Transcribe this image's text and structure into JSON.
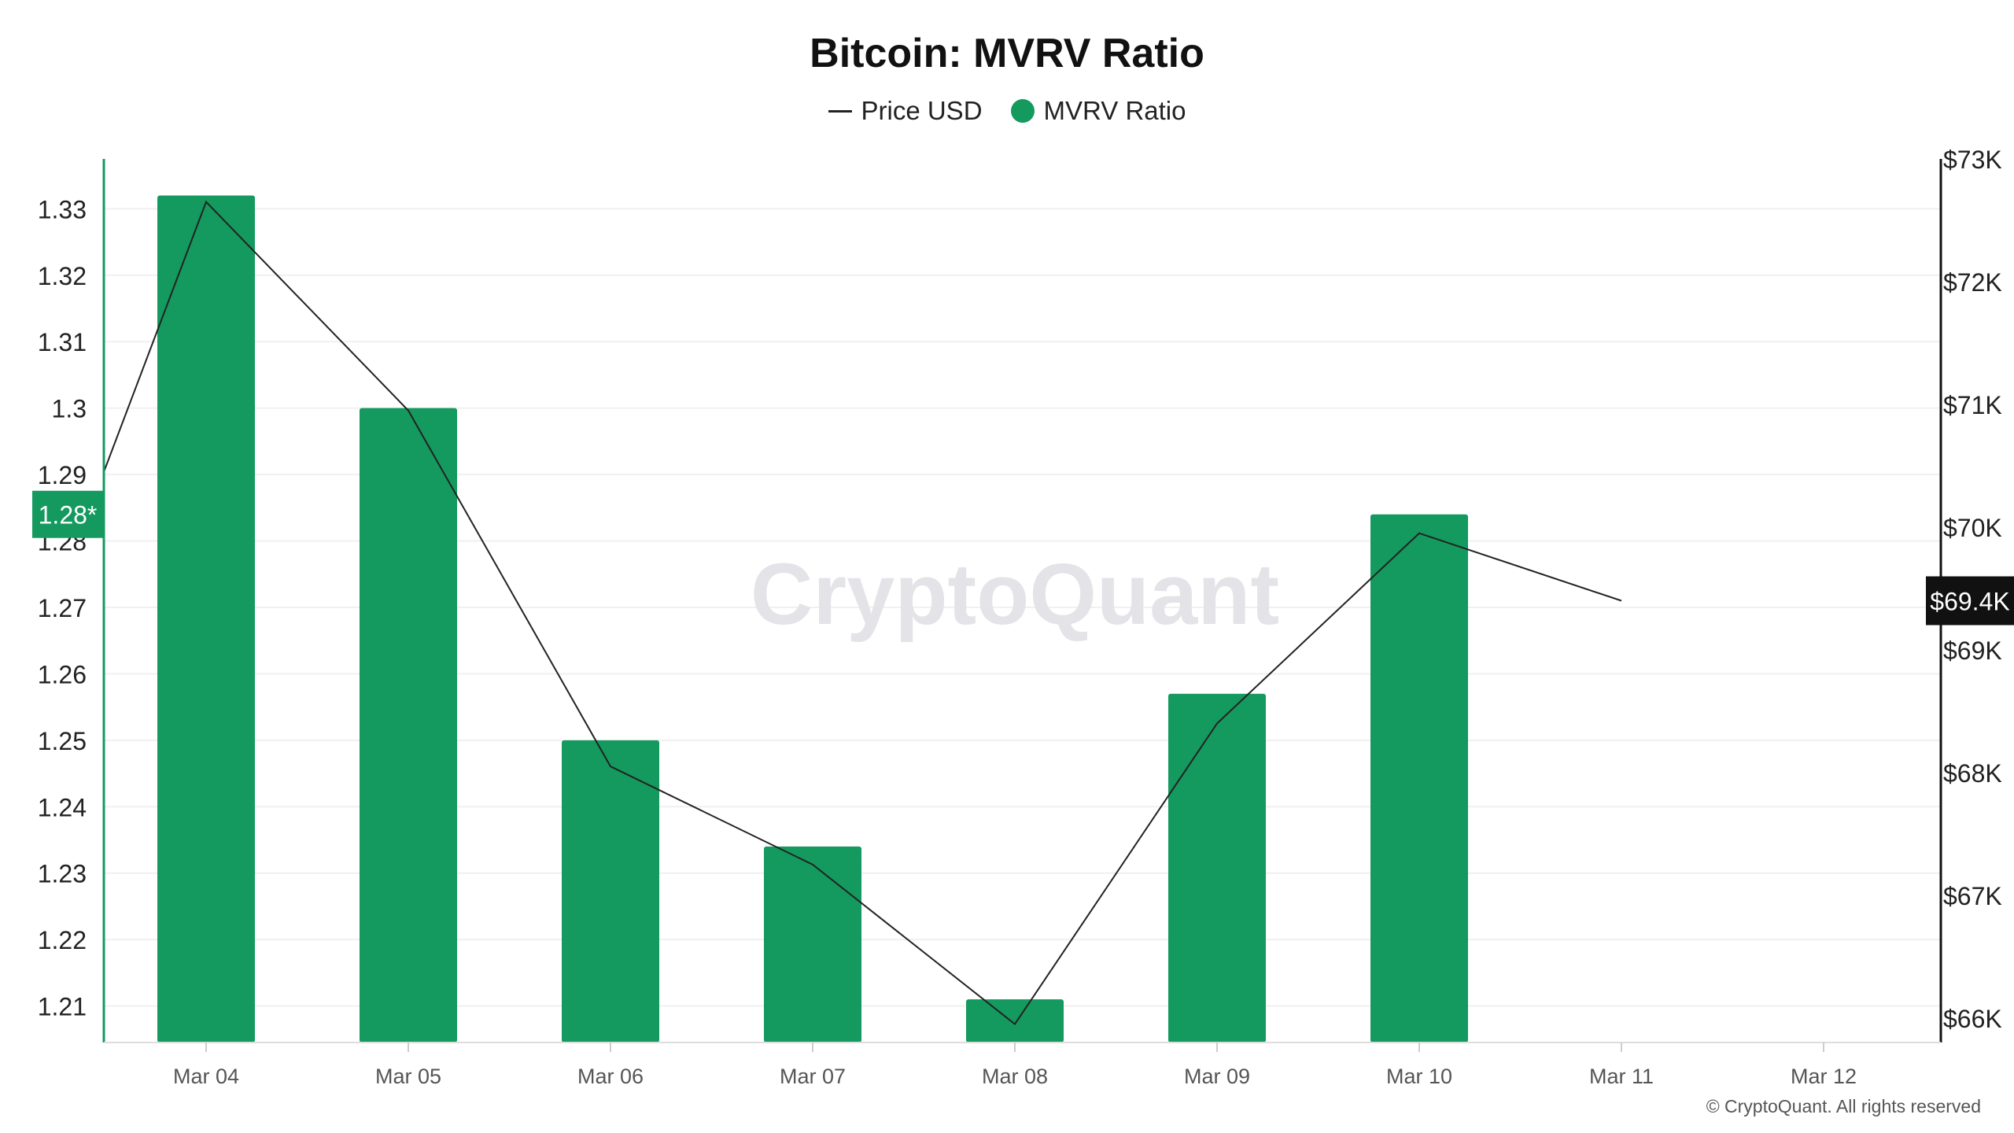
{
  "chart_data": {
    "type": "bar",
    "title": "Bitcoin: MVRV Ratio",
    "categories": [
      "Mar 04",
      "Mar 05",
      "Mar 06",
      "Mar 07",
      "Mar 08",
      "Mar 09",
      "Mar 10",
      "Mar 11",
      "Mar 12"
    ],
    "series": [
      {
        "name": "MVRV Ratio",
        "type": "bar",
        "axis": "left",
        "color": "#14995f",
        "values": [
          1.332,
          1.3,
          1.25,
          1.234,
          1.211,
          1.257,
          1.284,
          null,
          null
        ]
      },
      {
        "name": "Price USD",
        "type": "line",
        "axis": "right",
        "color": "#222222",
        "values": [
          72650,
          70950,
          68050,
          67250,
          65950,
          68400,
          69950,
          69400,
          null
        ],
        "start_value": 70450
      }
    ],
    "left_axis": {
      "ticks": [
        "1.21",
        "1.22",
        "1.23",
        "1.24",
        "1.25",
        "1.26",
        "1.27",
        "1.28",
        "1.29",
        "1.3",
        "1.31",
        "1.32",
        "1.33"
      ],
      "range": [
        1.2045,
        1.3375
      ],
      "current_label": "1.28*",
      "current_value": 1.284
    },
    "right_axis": {
      "ticks": [
        "$66K",
        "$67K",
        "$68K",
        "$69K",
        "$70K",
        "$71K",
        "$72K",
        "$73K"
      ],
      "range": [
        65800,
        73000
      ],
      "current_label": "$69.4K",
      "current_value": 69400
    },
    "watermark": "CryptoQuant",
    "grid": true,
    "legend": "top-center"
  },
  "copyright": "© CryptoQuant. All rights reserved"
}
